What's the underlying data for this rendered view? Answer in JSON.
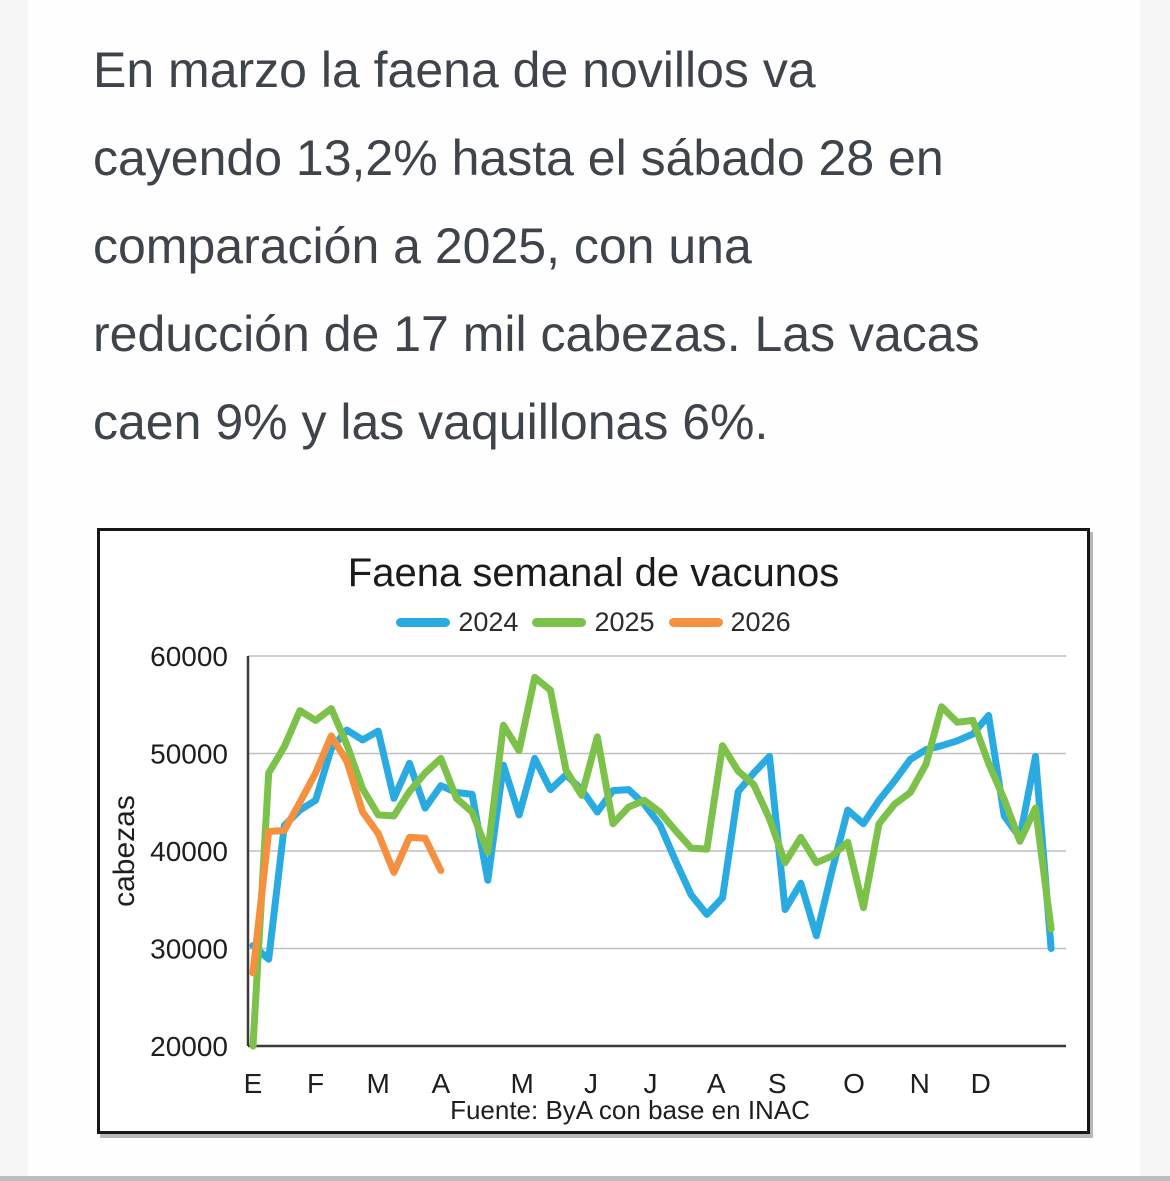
{
  "article": {
    "lines": [
      "En marzo la faena de novillos va",
      "cayendo 13,2% hasta el sábado 28 en",
      "comparación a 2025, con una",
      "reducción de 17 mil cabezas. Las vacas",
      "caen 9% y las vaquillonas 6%."
    ],
    "full_text": "En marzo la faena de novillos va cayendo 13,2% hasta el sábado 28 en comparación a 2025, con una reducción de 17 mil cabezas. Las vacas caen 9% y las vaquillonas 6%."
  },
  "chart_data": {
    "type": "line",
    "title": "Faena semanal de vacunos",
    "ylabel": "cabezas",
    "xlabel": "",
    "ylim": [
      20000,
      60000
    ],
    "y_ticks": [
      60000,
      50000,
      40000,
      30000,
      20000
    ],
    "x_tick_labels": [
      "E",
      "F",
      "M",
      "A",
      "M",
      "J",
      "J",
      "A",
      "S",
      "O",
      "N",
      "D"
    ],
    "x_unit": "semana 1-52 del año",
    "grid": "horizontal",
    "legend_position": "top-center",
    "source": "Fuente: ByA con base en INAC",
    "series": [
      {
        "name": "2024",
        "color": "#29abe2",
        "values": [
          30300,
          28900,
          42600,
          44200,
          45200,
          50500,
          52400,
          51400,
          52300,
          45400,
          49000,
          44400,
          46700,
          46000,
          45800,
          37000,
          48800,
          43700,
          49500,
          46300,
          47800,
          46300,
          44000,
          46200,
          46300,
          44800,
          42700,
          39000,
          35500,
          33500,
          35200,
          46100,
          48000,
          49700,
          34000,
          36700,
          31300,
          38000,
          44200,
          42800,
          45200,
          47200,
          49400,
          50400,
          50800,
          51300,
          52000,
          53900,
          43600,
          41400,
          49700,
          30000
        ]
      },
      {
        "name": "2025",
        "color": "#7cc24a",
        "values": [
          20000,
          48000,
          50700,
          54400,
          53400,
          54600,
          50900,
          46400,
          43700,
          43600,
          46100,
          48000,
          49500,
          45400,
          44000,
          39900,
          52900,
          50300,
          57800,
          56500,
          48300,
          45700,
          51700,
          42800,
          44500,
          45200,
          44000,
          42100,
          40300,
          40200,
          50800,
          48200,
          46800,
          43300,
          38800,
          41400,
          38800,
          39500,
          40900,
          34200,
          42800,
          44800,
          46000,
          48900,
          54800,
          53200,
          53400,
          49000,
          45300,
          41000,
          44400,
          32000
        ]
      },
      {
        "name": "2026",
        "color": "#f5913e",
        "values": [
          27500,
          42000,
          42100,
          45000,
          48000,
          51800,
          49200,
          44000,
          41800,
          37800,
          41400,
          41300,
          38000
        ]
      }
    ]
  }
}
